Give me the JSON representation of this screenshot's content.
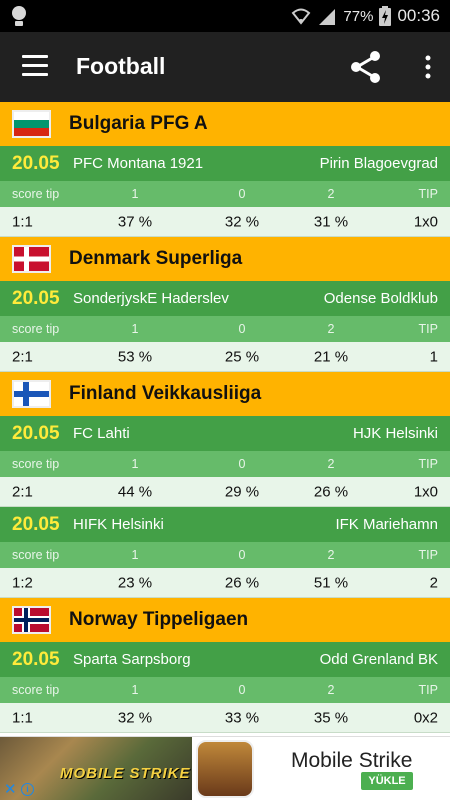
{
  "status_bar": {
    "battery": "77%",
    "time": "00:36"
  },
  "app_bar": {
    "title": "Football"
  },
  "tip_header": {
    "score": "score tip",
    "h": "1",
    "d": "0",
    "a": "2",
    "tip": "TIP"
  },
  "leagues": [
    {
      "name": "Bulgaria PFG A",
      "flag": "bulgaria-flag",
      "matches": [
        {
          "date": "20.05",
          "home": "PFC Montana 1921",
          "away": "Pirin Blagoevgrad",
          "score_tip": "1:1",
          "p1": "37 %",
          "p0": "32 %",
          "p2": "31 %",
          "tip": "1x0"
        }
      ]
    },
    {
      "name": "Denmark Superliga",
      "flag": "denmark-flag",
      "matches": [
        {
          "date": "20.05",
          "home": "SonderjyskE Haderslev",
          "away": "Odense Boldklub",
          "score_tip": "2:1",
          "p1": "53 %",
          "p0": "25 %",
          "p2": "21 %",
          "tip": "1"
        }
      ]
    },
    {
      "name": "Finland Veikkausliiga",
      "flag": "finland-flag",
      "matches": [
        {
          "date": "20.05",
          "home": "FC Lahti",
          "away": "HJK Helsinki",
          "score_tip": "2:1",
          "p1": "44 %",
          "p0": "29 %",
          "p2": "26 %",
          "tip": "1x0"
        },
        {
          "date": "20.05",
          "home": "HIFK Helsinki",
          "away": "IFK Mariehamn",
          "score_tip": "1:2",
          "p1": "23 %",
          "p0": "26 %",
          "p2": "51 %",
          "tip": "2"
        }
      ]
    },
    {
      "name": "Norway Tippeligaen",
      "flag": "norway-flag",
      "matches": [
        {
          "date": "20.05",
          "home": "Sparta Sarpsborg",
          "away": "Odd Grenland BK",
          "score_tip": "1:1",
          "p1": "32 %",
          "p0": "33 %",
          "p2": "35 %",
          "tip": "0x2"
        }
      ]
    }
  ],
  "ad": {
    "image_text": "MOBILE STRIKE",
    "title": "Mobile Strike",
    "cta": "YÜKLE",
    "close_glyph": "✕",
    "info_glyph": "i"
  },
  "colors": {
    "league_bg": "#ffb300",
    "match_bg": "#43a047",
    "date": "#ffeb3b",
    "tiphead_bg": "#66bb6a",
    "value_bg": "#e8f5e9"
  }
}
